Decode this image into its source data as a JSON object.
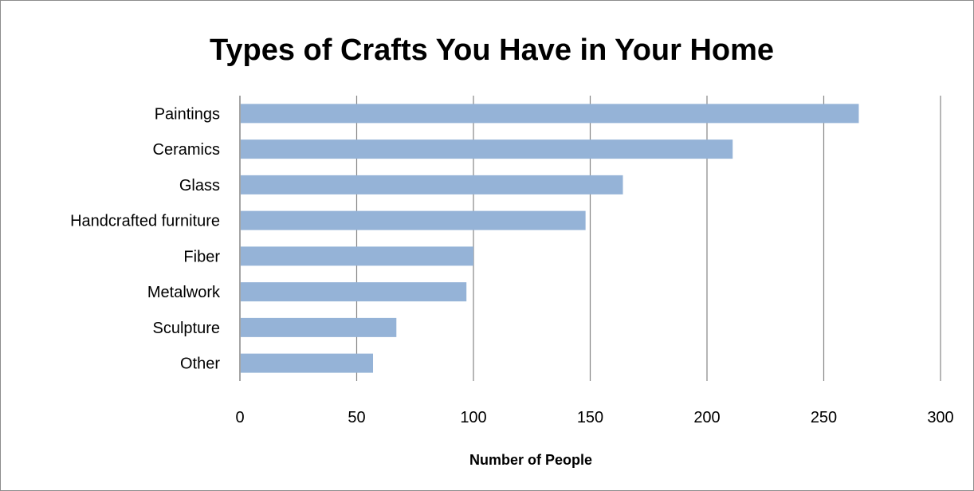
{
  "chart_data": {
    "type": "bar",
    "orientation": "horizontal",
    "title": "Types of Crafts You Have in Your Home",
    "xlabel": "Number of People",
    "ylabel": "",
    "categories": [
      "Paintings",
      "Ceramics",
      "Glass",
      "Handcrafted furniture",
      "Fiber",
      "Metalwork",
      "Sculpture",
      "Other"
    ],
    "values": [
      265,
      211,
      164,
      148,
      100,
      97,
      67,
      57
    ],
    "xlim": [
      0,
      300
    ],
    "xticks": [
      "0",
      "50",
      "100",
      "150",
      "200",
      "250",
      "300"
    ],
    "grid": true,
    "legend": false,
    "colors": {
      "bar": "#95b3d7",
      "grid": "#868686",
      "axis": "#868686"
    }
  }
}
